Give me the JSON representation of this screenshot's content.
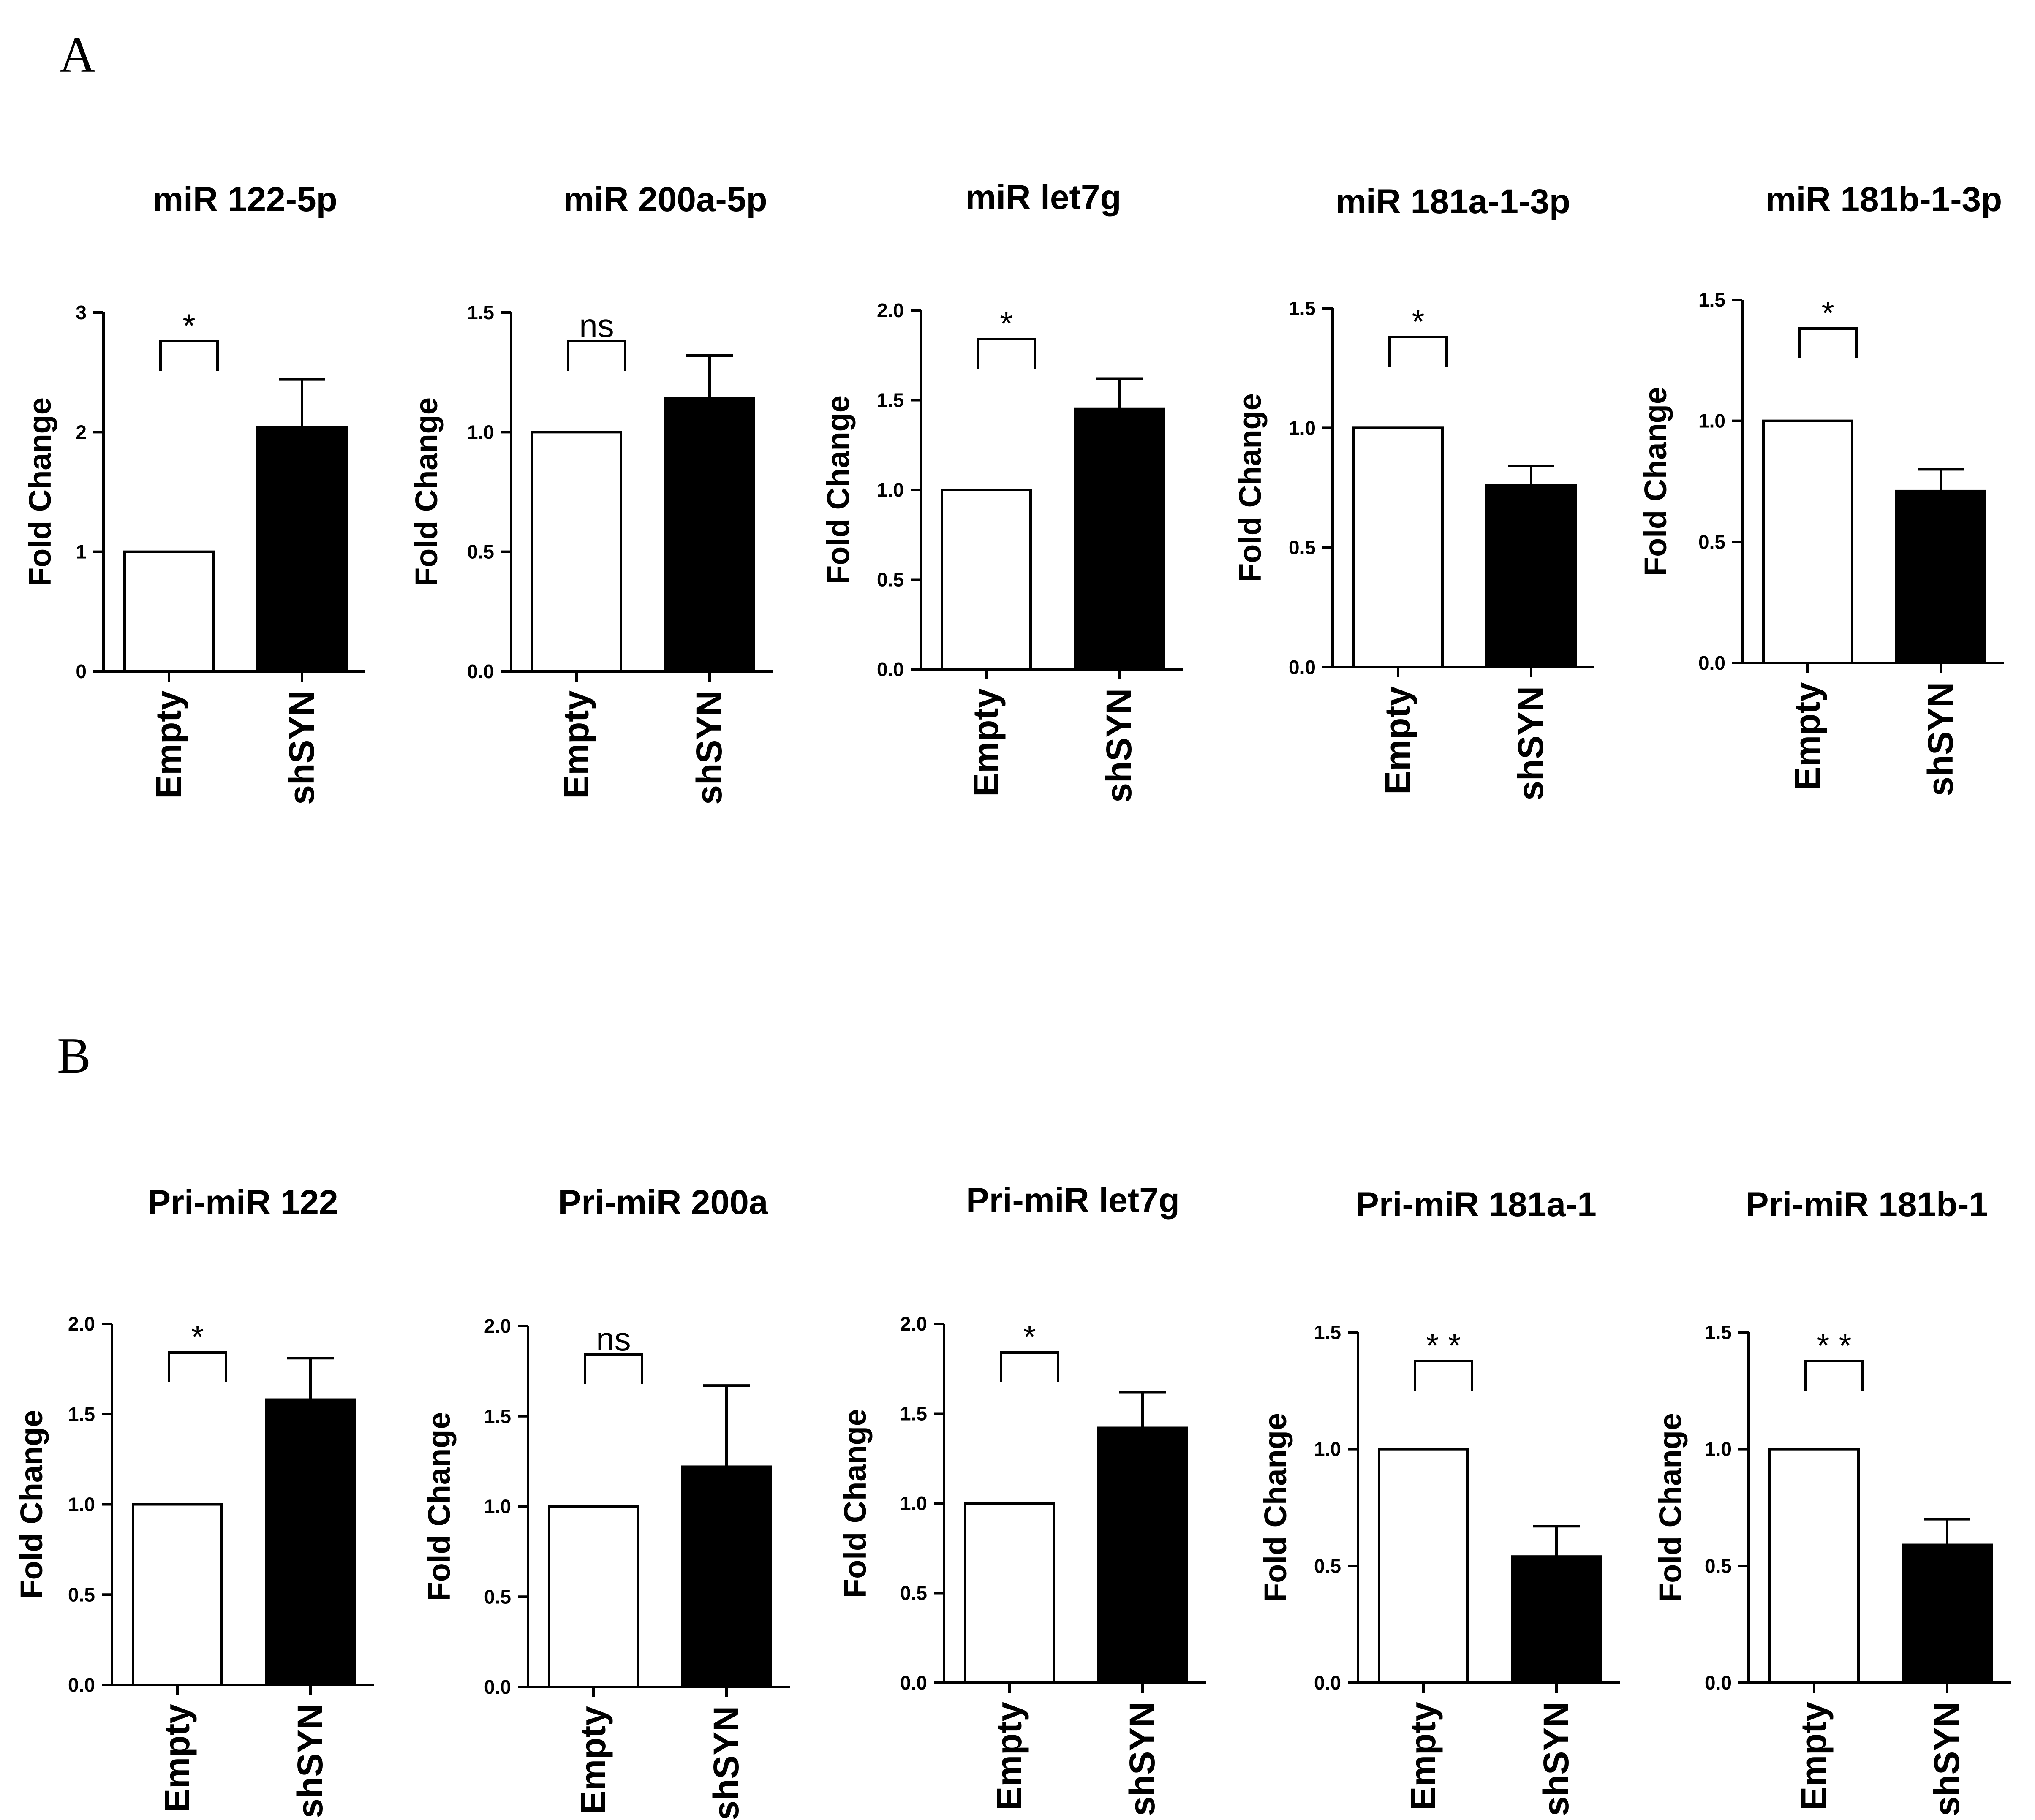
{
  "panels": [
    {
      "letter": "A"
    },
    {
      "letter": "B"
    }
  ],
  "style": {
    "empty_bar_color": "#ffffff",
    "shSYN_bar_color": "#000000",
    "axis_color": "#000000"
  },
  "chart_data": [
    {
      "panel": "A",
      "type": "bar",
      "title": "miR 122-5p",
      "ylabel": "Fold Change",
      "categories": [
        "Empty",
        "shSYN"
      ],
      "values": [
        1.0,
        2.04
      ],
      "errors": [
        0,
        0.4
      ],
      "ylim": [
        0,
        3
      ],
      "yticks": [
        0,
        1,
        2,
        3
      ],
      "ytick_labels": [
        "0",
        "1",
        "2",
        "3"
      ],
      "significance": "*"
    },
    {
      "panel": "A",
      "type": "bar",
      "title": "miR 200a-5p",
      "ylabel": "Fold Change",
      "categories": [
        "Empty",
        "shSYN"
      ],
      "values": [
        1.0,
        1.14
      ],
      "errors": [
        0,
        0.18
      ],
      "ylim": [
        0,
        1.5
      ],
      "yticks": [
        0,
        0.5,
        1.0,
        1.5
      ],
      "ytick_labels": [
        "0.0",
        "0.5",
        "1.0",
        "1.5"
      ],
      "significance": "ns"
    },
    {
      "panel": "A",
      "type": "bar",
      "title": "miR let7g",
      "ylabel": "Fold Change",
      "categories": [
        "Empty",
        "shSYN"
      ],
      "values": [
        1.0,
        1.45
      ],
      "errors": [
        0,
        0.17
      ],
      "ylim": [
        0,
        2.0
      ],
      "yticks": [
        0,
        0.5,
        1.0,
        1.5,
        2.0
      ],
      "ytick_labels": [
        "0.0",
        "0.5",
        "1.0",
        "1.5",
        "2.0"
      ],
      "significance": "*"
    },
    {
      "panel": "A",
      "type": "bar",
      "title": "miR 181a-1-3p",
      "ylabel": "Fold Change",
      "categories": [
        "Empty",
        "shSYN"
      ],
      "values": [
        1.0,
        0.76
      ],
      "errors": [
        0,
        0.08
      ],
      "ylim": [
        0,
        1.5
      ],
      "yticks": [
        0,
        0.5,
        1.0,
        1.5
      ],
      "ytick_labels": [
        "0.0",
        "0.5",
        "1.0",
        "1.5"
      ],
      "significance": "*"
    },
    {
      "panel": "A",
      "type": "bar",
      "title": "miR 181b-1-3p",
      "ylabel": "Fold Change",
      "categories": [
        "Empty",
        "shSYN"
      ],
      "values": [
        1.0,
        0.71
      ],
      "errors": [
        0,
        0.09
      ],
      "ylim": [
        0,
        1.5
      ],
      "yticks": [
        0,
        0.5,
        1.0,
        1.5
      ],
      "ytick_labels": [
        "0.0",
        "0.5",
        "1.0",
        "1.5"
      ],
      "significance": "*"
    },
    {
      "panel": "B",
      "type": "bar",
      "title": "Pri-miR 122",
      "ylabel": "Fold Change",
      "categories": [
        "Empty",
        "shSYN"
      ],
      "values": [
        1.0,
        1.58
      ],
      "errors": [
        0,
        0.23
      ],
      "ylim": [
        0,
        2.0
      ],
      "yticks": [
        0,
        0.5,
        1.0,
        1.5,
        2.0
      ],
      "ytick_labels": [
        "0.0",
        "0.5",
        "1.0",
        "1.5",
        "2.0"
      ],
      "significance": "*"
    },
    {
      "panel": "B",
      "type": "bar",
      "title": "Pri-miR 200a",
      "ylabel": "Fold Change",
      "categories": [
        "Empty",
        "shSYN"
      ],
      "values": [
        1.0,
        1.22
      ],
      "errors": [
        0,
        0.45
      ],
      "ylim": [
        0,
        2.0
      ],
      "yticks": [
        0,
        0.5,
        1.0,
        1.5,
        2.0
      ],
      "ytick_labels": [
        "0.0",
        "0.5",
        "1.0",
        "1.5",
        "2.0"
      ],
      "significance": "ns"
    },
    {
      "panel": "B",
      "type": "bar",
      "title": "Pri-miR let7g",
      "ylabel": "Fold Change",
      "categories": [
        "Empty",
        "shSYN"
      ],
      "values": [
        1.0,
        1.42
      ],
      "errors": [
        0,
        0.2
      ],
      "ylim": [
        0,
        2.0
      ],
      "yticks": [
        0,
        0.5,
        1.0,
        1.5,
        2.0
      ],
      "ytick_labels": [
        "0.0",
        "0.5",
        "1.0",
        "1.5",
        "2.0"
      ],
      "significance": "*"
    },
    {
      "panel": "B",
      "type": "bar",
      "title": "Pri-miR 181a-1",
      "ylabel": "Fold Change",
      "categories": [
        "Empty",
        "shSYN"
      ],
      "values": [
        1.0,
        0.54
      ],
      "errors": [
        0,
        0.13
      ],
      "ylim": [
        0,
        1.5
      ],
      "yticks": [
        0,
        0.5,
        1.0,
        1.5
      ],
      "ytick_labels": [
        "0.0",
        "0.5",
        "1.0",
        "1.5"
      ],
      "significance": "* *"
    },
    {
      "panel": "B",
      "type": "bar",
      "title": "Pri-miR 181b-1",
      "ylabel": "Fold Change",
      "categories": [
        "Empty",
        "shSYN"
      ],
      "values": [
        1.0,
        0.59
      ],
      "errors": [
        0,
        0.11
      ],
      "ylim": [
        0,
        1.5
      ],
      "yticks": [
        0,
        0.5,
        1.0,
        1.5
      ],
      "ytick_labels": [
        "0.0",
        "0.5",
        "1.0",
        "1.5"
      ],
      "significance": "* *"
    }
  ]
}
